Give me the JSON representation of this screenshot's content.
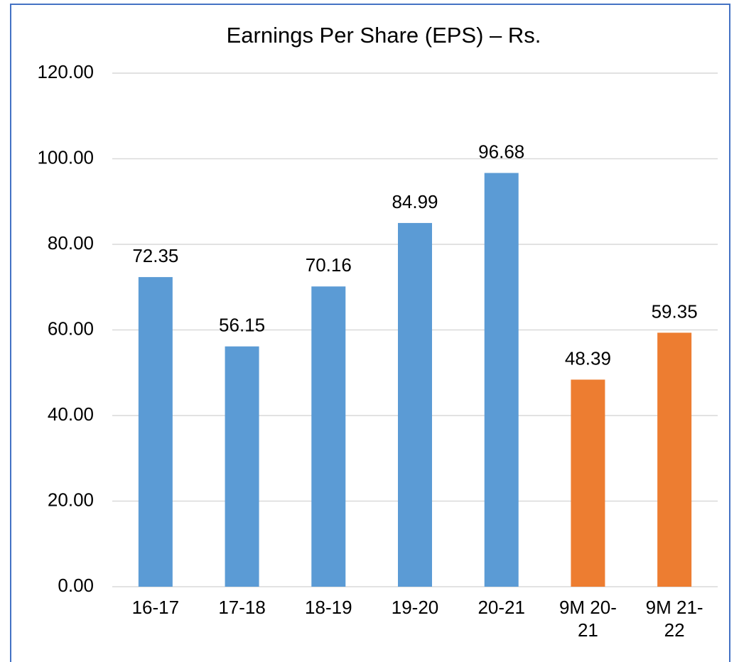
{
  "chart_data": {
    "type": "bar",
    "title": "Earnings Per Share (EPS) – Rs.",
    "categories": [
      "16-17",
      "17-18",
      "18-19",
      "19-20",
      "20-21",
      "9M 20-21",
      "9M 21-22"
    ],
    "values": [
      72.35,
      56.15,
      70.16,
      84.99,
      96.68,
      48.39,
      59.35
    ],
    "colors": [
      "#5b9bd5",
      "#5b9bd5",
      "#5b9bd5",
      "#5b9bd5",
      "#5b9bd5",
      "#ed7d31",
      "#ed7d31"
    ],
    "ylim": [
      0,
      120
    ],
    "yticks": [
      {
        "value": 0,
        "label": "0.00"
      },
      {
        "value": 20,
        "label": "20.00"
      },
      {
        "value": 40,
        "label": "40.00"
      },
      {
        "value": 60,
        "label": "60.00"
      },
      {
        "value": 80,
        "label": "80.00"
      },
      {
        "value": 100,
        "label": "100.00"
      },
      {
        "value": 120,
        "label": "120.00"
      }
    ],
    "grid": true
  }
}
